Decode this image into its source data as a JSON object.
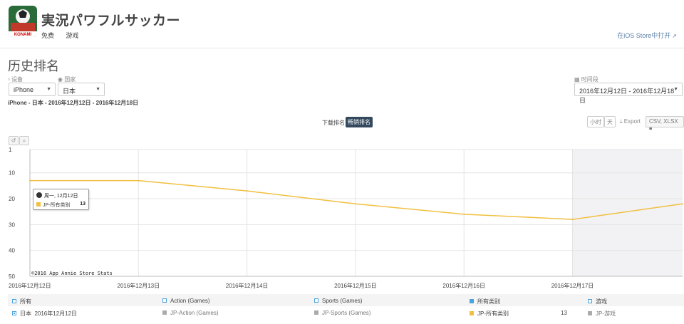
{
  "app": {
    "title": "実況パワフルサッカー",
    "price": "免费",
    "category": "游戏",
    "store_link": "在iOS Store中打开",
    "icon_brand": "KONAMI"
  },
  "page": {
    "section_title": "历史排名",
    "subtitle": "iPhone - 日本 - 2016年12月12日 - 2016年12月18日"
  },
  "filters": {
    "device_label": "设备",
    "device_value": "iPhone",
    "country_label": "国家",
    "country_value": "日本",
    "date_label": "时间段",
    "date_value": "2016年12月12日 - 2016年12月18日"
  },
  "rank_toggle": {
    "download": "下载排名",
    "revenue": "畅销排名",
    "active": "revenue"
  },
  "controls": {
    "hour": "小时",
    "day": "天",
    "export": "Export",
    "formats": "CSV, XLSX"
  },
  "tooltip": {
    "date": "周一, 12月12日",
    "series": "JP-所有类别",
    "value": "13"
  },
  "chart_data": {
    "type": "line",
    "y_inverted": true,
    "ylim": [
      1,
      50
    ],
    "yticks": [
      "1",
      "10",
      "20",
      "30",
      "40",
      "50"
    ],
    "ytick_values": [
      1,
      10,
      20,
      30,
      40,
      50
    ],
    "xticks": [
      "2016年12月12日",
      "2016年12月13日",
      "2016年12月14日",
      "2016年12月15日",
      "2016年12月16日",
      "2016年12月17日"
    ],
    "series": [
      {
        "name": "JP-所有类别",
        "color": "#f0c040",
        "x": [
          "2016年12月12日",
          "2016年12月13日",
          "2016年12月14日",
          "2016年12月15日",
          "2016年12月16日",
          "2016年12月17日",
          "2016年12月18日"
        ],
        "values": [
          13,
          13,
          17,
          22,
          26,
          28,
          22
        ]
      }
    ],
    "watermark": "©2016 App Annie Store Stats",
    "grid": true
  },
  "legend": {
    "header": [
      "所有",
      "Action (Games)",
      "Sports (Games)",
      "所有类别",
      "游戏"
    ],
    "row_country": "日本",
    "row_date": "2016年12月12日",
    "row_items": [
      "JP-Action (Games)",
      "JP-Sports (Games)",
      "JP-所有类别",
      "JP-游戏"
    ],
    "row_value": "13"
  }
}
